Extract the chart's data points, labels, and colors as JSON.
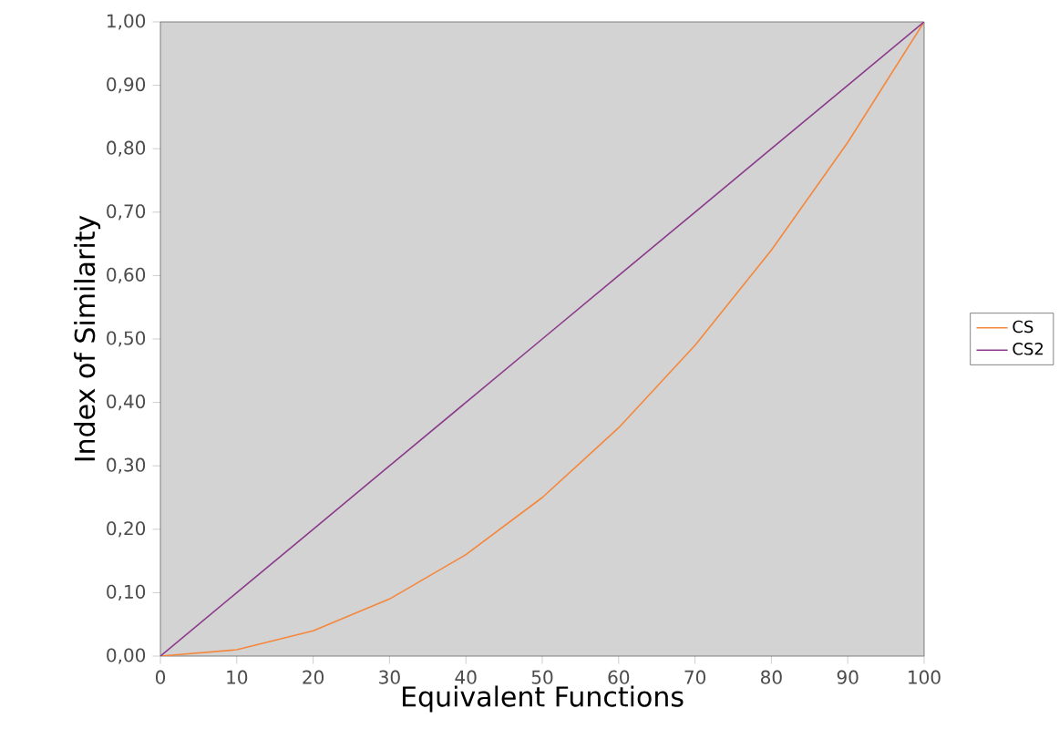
{
  "chart_data": {
    "type": "line",
    "xlabel": "Equivalent Functions",
    "ylabel": "Index of Similarity",
    "x": [
      0,
      10,
      20,
      30,
      40,
      50,
      60,
      70,
      80,
      90,
      100
    ],
    "series": [
      {
        "name": "CS",
        "color": "#f5873c",
        "values": [
          0,
          0.01,
          0.04,
          0.09,
          0.16,
          0.25,
          0.36,
          0.49,
          0.64,
          0.81,
          1.0
        ]
      },
      {
        "name": "CS2",
        "color": "#8b3a8b",
        "values": [
          0,
          0.1,
          0.2,
          0.3,
          0.4,
          0.5,
          0.6,
          0.7,
          0.8,
          0.9,
          1.0
        ]
      }
    ],
    "xlim": [
      0,
      100
    ],
    "ylim": [
      0,
      1
    ],
    "xticks": [
      0,
      10,
      20,
      30,
      40,
      50,
      60,
      70,
      80,
      90,
      100
    ],
    "yticks": [
      {
        "value": 0,
        "label": "0,00"
      },
      {
        "value": 0.1,
        "label": "0,10"
      },
      {
        "value": 0.2,
        "label": "0,20"
      },
      {
        "value": 0.3,
        "label": "0,30"
      },
      {
        "value": 0.4,
        "label": "0,40"
      },
      {
        "value": 0.5,
        "label": "0,50"
      },
      {
        "value": 0.6,
        "label": "0,60"
      },
      {
        "value": 0.7,
        "label": "0,70"
      },
      {
        "value": 0.8,
        "label": "0,80"
      },
      {
        "value": 0.9,
        "label": "0,90"
      },
      {
        "value": 1.0,
        "label": "1,00"
      }
    ],
    "legend": "right",
    "grid": false,
    "marker": "none",
    "line_style": "solid"
  }
}
